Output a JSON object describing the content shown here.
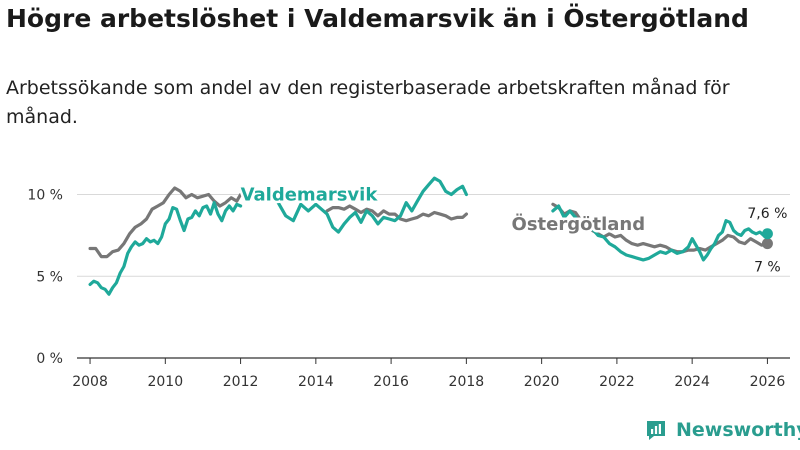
{
  "title": "Högre arbetslöshet i Valdemarsvik än i Östergötland",
  "subtitle": "Arbetssökande som andel av den registerbaserade arbetskraften månad för månad.",
  "brand": {
    "name": "Newsworthy",
    "color": "#2a9d8f"
  },
  "chart_data": {
    "type": "line",
    "xlim": [
      2007.6,
      2026.6
    ],
    "ylim": [
      0,
      11.5
    ],
    "x_ticks": [
      {
        "value": 2008,
        "label": "2008"
      },
      {
        "value": 2010,
        "label": "2010"
      },
      {
        "value": 2012,
        "label": "2012"
      },
      {
        "value": 2014,
        "label": "2014"
      },
      {
        "value": 2016,
        "label": "2016"
      },
      {
        "value": 2018,
        "label": "2018"
      },
      {
        "value": 2020,
        "label": "2020"
      },
      {
        "value": 2022,
        "label": "2022"
      },
      {
        "value": 2024,
        "label": "2024"
      },
      {
        "value": 2026,
        "label": "2026"
      }
    ],
    "y_ticks": [
      {
        "value": 0,
        "label": "0 %"
      },
      {
        "value": 5,
        "label": "5 %"
      },
      {
        "value": 10,
        "label": "10 %"
      }
    ],
    "grid": true,
    "series": [
      {
        "name": "Östergötland",
        "color": "#777777",
        "label_at": {
          "x": 2019.2,
          "y": 8.2
        },
        "end_label": "7 %",
        "points": [
          [
            2008.0,
            6.7
          ],
          [
            2008.15,
            6.7
          ],
          [
            2008.3,
            6.2
          ],
          [
            2008.45,
            6.2
          ],
          [
            2008.6,
            6.5
          ],
          [
            2008.75,
            6.6
          ],
          [
            2008.9,
            7.0
          ],
          [
            2009.05,
            7.6
          ],
          [
            2009.2,
            8.0
          ],
          [
            2009.35,
            8.2
          ],
          [
            2009.5,
            8.5
          ],
          [
            2009.65,
            9.1
          ],
          [
            2009.8,
            9.3
          ],
          [
            2009.95,
            9.5
          ],
          [
            2010.1,
            10.0
          ],
          [
            2010.25,
            10.4
          ],
          [
            2010.4,
            10.2
          ],
          [
            2010.55,
            9.8
          ],
          [
            2010.7,
            10.0
          ],
          [
            2010.85,
            9.8
          ],
          [
            2011.0,
            9.9
          ],
          [
            2011.15,
            10.0
          ],
          [
            2011.3,
            9.6
          ],
          [
            2011.45,
            9.3
          ],
          [
            2011.6,
            9.5
          ],
          [
            2011.75,
            9.8
          ],
          [
            2011.9,
            9.6
          ],
          [
            2012.0,
            10.0
          ],
          [
            2014.3,
            9.0
          ],
          [
            2014.45,
            9.2
          ],
          [
            2014.6,
            9.2
          ],
          [
            2014.75,
            9.1
          ],
          [
            2014.9,
            9.3
          ],
          [
            2015.05,
            9.1
          ],
          [
            2015.2,
            8.9
          ],
          [
            2015.35,
            9.1
          ],
          [
            2015.5,
            9.0
          ],
          [
            2015.65,
            8.7
          ],
          [
            2015.8,
            9.0
          ],
          [
            2015.95,
            8.8
          ],
          [
            2016.1,
            8.8
          ],
          [
            2016.25,
            8.5
          ],
          [
            2016.4,
            8.4
          ],
          [
            2016.55,
            8.5
          ],
          [
            2016.7,
            8.6
          ],
          [
            2016.85,
            8.8
          ],
          [
            2017.0,
            8.7
          ],
          [
            2017.15,
            8.9
          ],
          [
            2017.3,
            8.8
          ],
          [
            2017.45,
            8.7
          ],
          [
            2017.6,
            8.5
          ],
          [
            2017.75,
            8.6
          ],
          [
            2017.9,
            8.6
          ],
          [
            2018.0,
            8.8
          ],
          [
            2020.3,
            9.4
          ],
          [
            2020.45,
            9.2
          ],
          [
            2020.6,
            8.8
          ],
          [
            2020.75,
            9.0
          ],
          [
            2020.9,
            8.9
          ],
          [
            2021.05,
            8.4
          ],
          [
            2021.2,
            8.0
          ],
          [
            2021.35,
            7.8
          ],
          [
            2021.5,
            7.6
          ],
          [
            2021.65,
            7.4
          ],
          [
            2021.8,
            7.6
          ],
          [
            2021.95,
            7.4
          ],
          [
            2022.1,
            7.5
          ],
          [
            2022.25,
            7.2
          ],
          [
            2022.4,
            7.0
          ],
          [
            2022.55,
            6.9
          ],
          [
            2022.7,
            7.0
          ],
          [
            2022.85,
            6.9
          ],
          [
            2023.0,
            6.8
          ],
          [
            2023.15,
            6.9
          ],
          [
            2023.3,
            6.8
          ],
          [
            2023.45,
            6.6
          ],
          [
            2023.6,
            6.5
          ],
          [
            2023.75,
            6.5
          ],
          [
            2023.9,
            6.6
          ],
          [
            2024.05,
            6.6
          ],
          [
            2024.2,
            6.7
          ],
          [
            2024.35,
            6.6
          ],
          [
            2024.5,
            6.8
          ],
          [
            2024.65,
            7.0
          ],
          [
            2024.8,
            7.2
          ],
          [
            2024.95,
            7.5
          ],
          [
            2025.1,
            7.4
          ],
          [
            2025.25,
            7.1
          ],
          [
            2025.4,
            7.0
          ],
          [
            2025.55,
            7.3
          ],
          [
            2025.7,
            7.1
          ],
          [
            2025.85,
            6.9
          ],
          [
            2026.0,
            7.0
          ]
        ]
      },
      {
        "name": "Valdemarsvik",
        "color": "#1fa99a",
        "label_at": {
          "x": 2012.0,
          "y": 10.0
        },
        "end_label": "7,6 %",
        "points": [
          [
            2008.0,
            4.5
          ],
          [
            2008.1,
            4.7
          ],
          [
            2008.2,
            4.6
          ],
          [
            2008.3,
            4.3
          ],
          [
            2008.4,
            4.2
          ],
          [
            2008.5,
            3.9
          ],
          [
            2008.6,
            4.3
          ],
          [
            2008.7,
            4.6
          ],
          [
            2008.8,
            5.2
          ],
          [
            2008.9,
            5.6
          ],
          [
            2009.0,
            6.4
          ],
          [
            2009.1,
            6.8
          ],
          [
            2009.2,
            7.1
          ],
          [
            2009.3,
            6.9
          ],
          [
            2009.4,
            7.0
          ],
          [
            2009.5,
            7.3
          ],
          [
            2009.6,
            7.1
          ],
          [
            2009.7,
            7.2
          ],
          [
            2009.8,
            7.0
          ],
          [
            2009.9,
            7.4
          ],
          [
            2010.0,
            8.2
          ],
          [
            2010.1,
            8.5
          ],
          [
            2010.2,
            9.2
          ],
          [
            2010.3,
            9.1
          ],
          [
            2010.4,
            8.4
          ],
          [
            2010.5,
            7.8
          ],
          [
            2010.6,
            8.5
          ],
          [
            2010.7,
            8.6
          ],
          [
            2010.8,
            9.0
          ],
          [
            2010.9,
            8.7
          ],
          [
            2011.0,
            9.2
          ],
          [
            2011.1,
            9.3
          ],
          [
            2011.2,
            8.8
          ],
          [
            2011.3,
            9.5
          ],
          [
            2011.4,
            8.8
          ],
          [
            2011.5,
            8.4
          ],
          [
            2011.6,
            9.0
          ],
          [
            2011.7,
            9.3
          ],
          [
            2011.8,
            9.0
          ],
          [
            2011.9,
            9.4
          ],
          [
            2012.0,
            9.3
          ],
          [
            2013.0,
            9.5
          ],
          [
            2013.2,
            8.7
          ],
          [
            2013.4,
            8.4
          ],
          [
            2013.6,
            9.4
          ],
          [
            2013.8,
            9.0
          ],
          [
            2014.0,
            9.4
          ],
          [
            2014.3,
            8.8
          ],
          [
            2014.45,
            8.0
          ],
          [
            2014.6,
            7.7
          ],
          [
            2014.75,
            8.2
          ],
          [
            2014.9,
            8.6
          ],
          [
            2015.05,
            8.9
          ],
          [
            2015.2,
            8.3
          ],
          [
            2015.35,
            9.0
          ],
          [
            2015.5,
            8.7
          ],
          [
            2015.65,
            8.2
          ],
          [
            2015.8,
            8.6
          ],
          [
            2015.95,
            8.5
          ],
          [
            2016.1,
            8.4
          ],
          [
            2016.25,
            8.7
          ],
          [
            2016.4,
            9.5
          ],
          [
            2016.55,
            9.0
          ],
          [
            2016.7,
            9.6
          ],
          [
            2016.85,
            10.2
          ],
          [
            2017.0,
            10.6
          ],
          [
            2017.15,
            11.0
          ],
          [
            2017.3,
            10.8
          ],
          [
            2017.45,
            10.2
          ],
          [
            2017.6,
            10.0
          ],
          [
            2017.75,
            10.3
          ],
          [
            2017.9,
            10.5
          ],
          [
            2018.0,
            10.0
          ],
          [
            2020.3,
            9.0
          ],
          [
            2020.45,
            9.3
          ],
          [
            2020.6,
            8.6
          ],
          [
            2020.75,
            9.0
          ],
          [
            2020.9,
            8.6
          ],
          [
            2021.05,
            8.2
          ],
          [
            2021.2,
            7.8
          ],
          [
            2021.35,
            7.9
          ],
          [
            2021.5,
            7.5
          ],
          [
            2021.65,
            7.4
          ],
          [
            2021.8,
            7.0
          ],
          [
            2021.95,
            6.8
          ],
          [
            2022.1,
            6.5
          ],
          [
            2022.25,
            6.3
          ],
          [
            2022.4,
            6.2
          ],
          [
            2022.55,
            6.1
          ],
          [
            2022.7,
            6.0
          ],
          [
            2022.85,
            6.1
          ],
          [
            2023.0,
            6.3
          ],
          [
            2023.15,
            6.5
          ],
          [
            2023.3,
            6.4
          ],
          [
            2023.45,
            6.6
          ],
          [
            2023.6,
            6.4
          ],
          [
            2023.75,
            6.5
          ],
          [
            2023.9,
            6.8
          ],
          [
            2024.0,
            7.3
          ],
          [
            2024.1,
            6.9
          ],
          [
            2024.2,
            6.5
          ],
          [
            2024.3,
            6.0
          ],
          [
            2024.4,
            6.3
          ],
          [
            2024.5,
            6.7
          ],
          [
            2024.6,
            7.0
          ],
          [
            2024.7,
            7.5
          ],
          [
            2024.8,
            7.7
          ],
          [
            2024.9,
            8.4
          ],
          [
            2025.0,
            8.3
          ],
          [
            2025.1,
            7.8
          ],
          [
            2025.2,
            7.6
          ],
          [
            2025.3,
            7.5
          ],
          [
            2025.4,
            7.8
          ],
          [
            2025.5,
            7.9
          ],
          [
            2025.6,
            7.7
          ],
          [
            2025.7,
            7.6
          ],
          [
            2025.8,
            7.7
          ],
          [
            2025.9,
            7.5
          ],
          [
            2026.0,
            7.6
          ]
        ]
      }
    ]
  }
}
